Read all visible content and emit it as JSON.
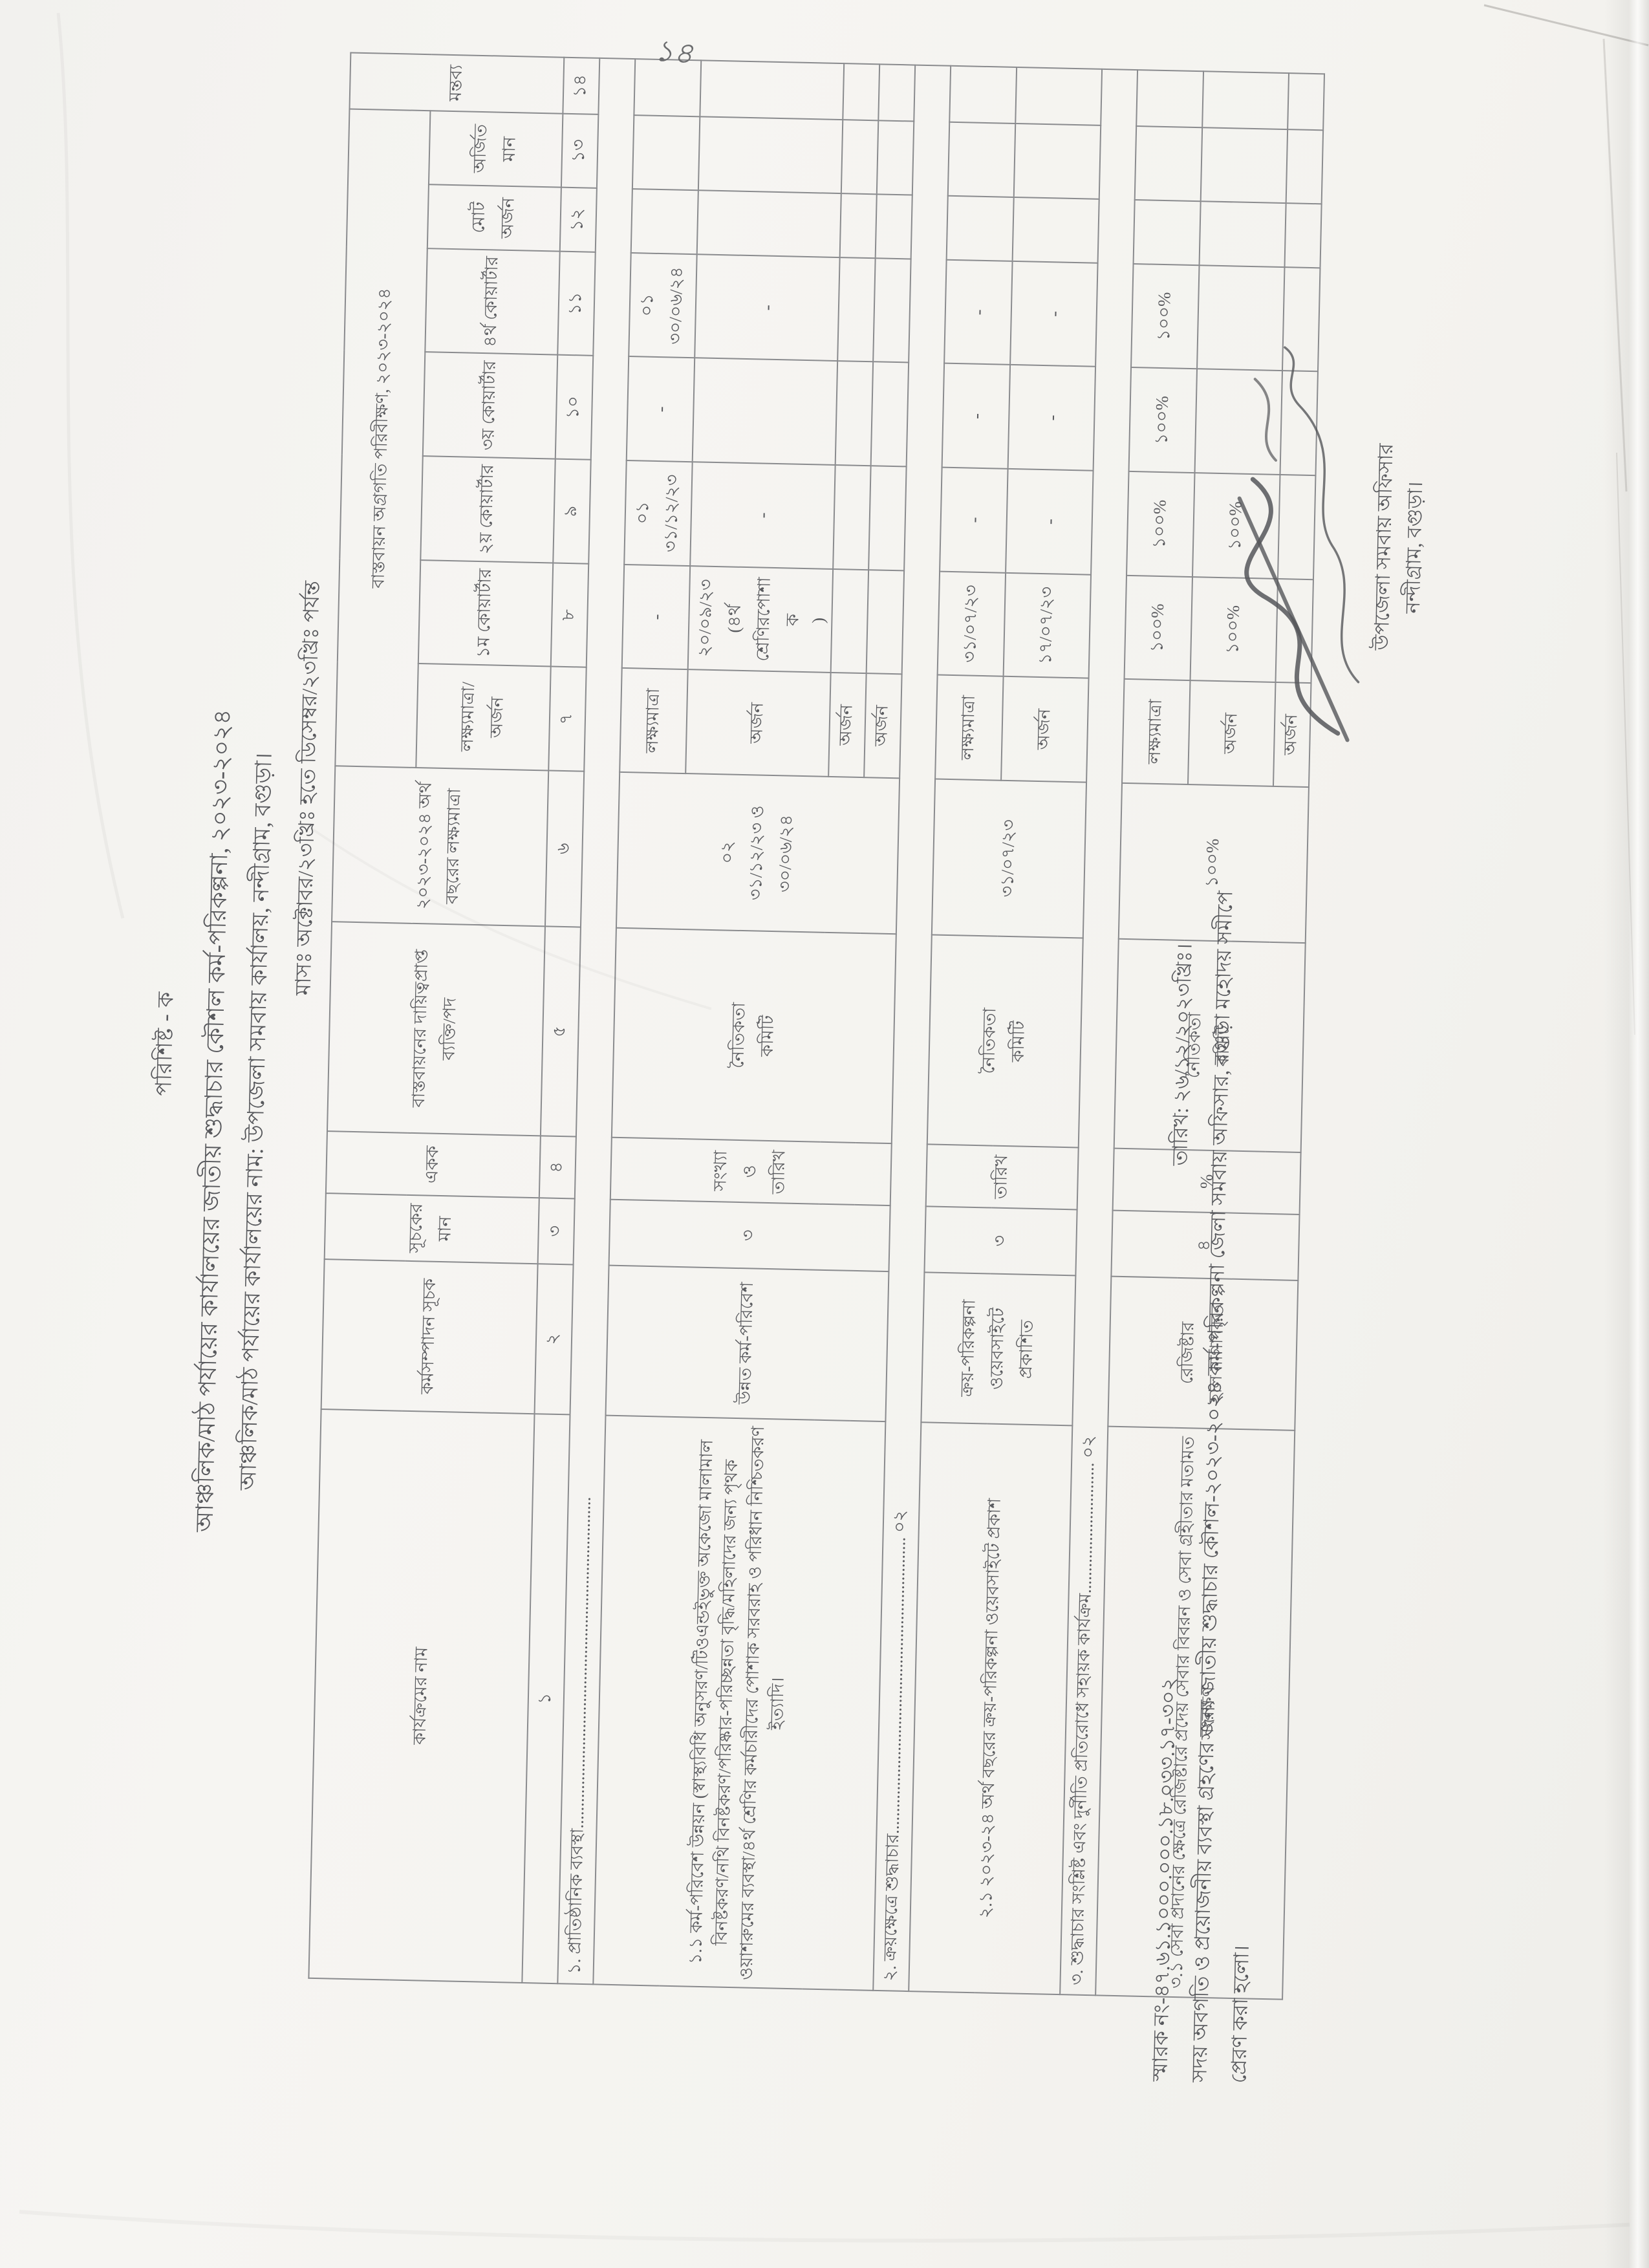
{
  "page": {
    "page_number_handwritten": "১৪",
    "appendix_label": "পরিশিষ্ট - ক",
    "title": "আঞ্চলিক/মাঠ পর্যায়ের কার্যালয়ের জাতীয় শুদ্ধাচার কৌশল কর্ম-পরিকল্পনা, ২০২৩-২০২৪",
    "office_line": "আঞ্চলিক/মাঠ পর্যায়ের কার্যালয়ের নাম: উপজেলা সমবায় কার্যালয়, নন্দীগ্রাম, বগুড়া।",
    "period_line": "মাসঃ অক্টোবর/২৩খ্রিঃ হতে ডিসেম্বর/২৩খ্রিঃ পর্যন্ত"
  },
  "table": {
    "headers": {
      "activity": "কার্যক্রমের নাম",
      "indicator": "কর্মসম্পাদন সূচক",
      "indicator_value": "সূচকের মান",
      "unit": "একক",
      "responsible": "বাস্তবায়নের দায়িত্বপ্রাপ্ত ব্যক্তি/পদ",
      "fy_target": "২০২৩-২০২৪ অর্থ বছরের লক্ষ্যমাত্রা",
      "monitoring": "বাস্তবায়ন অগ্রগতি পরিবীক্ষণ, ২০২৩-২০২৪",
      "target_achievement": "লক্ষ্যমাত্রা/অর্জন",
      "q1": "১ম কোয়ার্টার",
      "q2": "২য় কোয়ার্টার",
      "q3": "৩য় কোয়ার্টার",
      "q4": "৪র্থ কোয়ার্টার",
      "total_achievement": "মোট অর্জন",
      "earned_value": "অর্জিত মান",
      "remarks": "মন্তব্য"
    },
    "column_numbers": [
      "১",
      "২",
      "৩",
      "৪",
      "৫",
      "৬",
      "৭",
      "৮",
      "৯",
      "১০",
      "১১",
      "১২",
      "১৩",
      "১৪"
    ],
    "rows": [
      {
        "type": "section",
        "text": "১. প্রাতিষ্ঠানিক ব্যবস্থা............................................................................"
      },
      {
        "type": "activity",
        "activity": "১.১ কর্ম-পরিবেশ উন্নয়ন (স্বাস্থ্যবিধি অনুসরণ/টিওএন্ডইভুক্ত অকেজো মালামাল বিনষ্টকরণ/নথি বিনষ্টকরণ/পরিষ্কার-পরিচ্ছন্নতা বৃদ্ধি/মহিলাদের জন্য পৃথক ওয়াশরুমের ব্যবস্থা/৪র্থ শ্রেণির কর্মচারীদের পোশাক সরবরাহ ও পরিধান নিশ্চিতকরণ ইত্যাদি।",
        "indicator": "উন্নত কর্ম-পরিবেশ",
        "value": "৩",
        "unit": "সংখ্যা ও\nতারিখ",
        "responsible": "নৈতিকতা\nকমিটি",
        "fy_target": "০২\n৩১/১২/২৩ ও\n৩০/০৬/২৪",
        "subrows": [
          {
            "label": "লক্ষ্যমাত্রা",
            "q1": "-",
            "q2": "০১\n৩১/১২/২৩",
            "q3": "-",
            "q4": "০১\n৩০/০৬/২৪",
            "total": "",
            "earned": "",
            "remarks": ""
          },
          {
            "label": "অর্জন",
            "q1": "২০/০৯/২৩\n(৪র্থ\nশ্রেণিরপোশাক\n)",
            "q2": "-",
            "q3": "",
            "q4": "-",
            "total": "",
            "earned": "",
            "remarks": ""
          },
          {
            "label": "অর্জন",
            "q1": "",
            "q2": "",
            "q3": "",
            "q4": "",
            "total": "",
            "earned": "",
            "remarks": ""
          },
          {
            "label": "অর্জন",
            "q1": "",
            "q2": "",
            "q3": "",
            "q4": "",
            "total": "",
            "earned": "",
            "remarks": ""
          }
        ]
      },
      {
        "type": "section",
        "text": "২. ক্রয়ক্ষেত্রে শুদ্ধাচার.................................................................... ০২"
      },
      {
        "type": "activity",
        "activity": "২.১ ২০২৩-২৪ অর্থ বছরের ক্রয়-পরিকল্পনা ওয়েবসাইটে প্রকাশ",
        "indicator": "ক্রয়-পরিকল্পনা ওয়েবসাইটে প্রকাশিত",
        "value": "৩",
        "unit": "তারিখ",
        "responsible": "নৈতিকতা\nকমিটি",
        "fy_target": "৩১/০৭/২৩",
        "subrows": [
          {
            "label": "লক্ষ্যমাত্রা",
            "q1": "৩১/০৭/২৩",
            "q2": "-",
            "q3": "-",
            "q4": "-",
            "total": "",
            "earned": "",
            "remarks": ""
          },
          {
            "label": "অর্জন",
            "q1": "১৭/০৭/২৩",
            "q2": "-",
            "q3": "-",
            "q4": "-",
            "total": "",
            "earned": "",
            "remarks": ""
          }
        ]
      },
      {
        "type": "section",
        "text": "৩. শুদ্ধাচার সংশ্লিষ্ট এবং দুর্নীতি প্রতিরোধে সহায়ক কার্যক্রম.............................. ০২"
      },
      {
        "type": "activity",
        "activity": "৩.১ সেবা প্রদানের ক্ষেত্রে রেজিষ্টারে প্রদেয় সেবার বিবরন ও সেবা গ্রহীতার মতামত সংরক্ষণ",
        "indicator": "রেজিষ্টার\nহাল নাগাদকৃত",
        "value": "৪",
        "unit": "%",
        "responsible": "নৈতিকতা\nকমিটি",
        "fy_target": "১০০%",
        "subrows": [
          {
            "label": "লক্ষ্যমাত্রা",
            "q1": "১০০%",
            "q2": "১০০%",
            "q3": "১০০%",
            "q4": "১০০%",
            "total": "",
            "earned": "",
            "remarks": ""
          },
          {
            "label": "অর্জন",
            "q1": "১০০%",
            "q2": "১০০%",
            "q3": "",
            "q4": "",
            "total": "",
            "earned": "",
            "remarks": ""
          },
          {
            "label": "অর্জন",
            "q1": "",
            "q2": "",
            "q3": "",
            "q4": "",
            "total": "",
            "earned": "",
            "remarks": ""
          }
        ]
      }
    ]
  },
  "footer": {
    "memo_line": "স্মারক নং-৪৭.৬১.১০০০.০০০.১৮.০৩৩.১৭-৩০২",
    "date_line": "তারিখ: ২৬/১২/২০২৩খ্রিঃ।",
    "forward_line": "সদয় অবগতি ও প্রয়োজনীয় ব্যবস্থা গ্রহণের জন্য জাতীয় শুদ্ধাচার কৌশল-২০২৩-২০২৪ কর্ম-পরিকল্পনা  জেলা সমবায় অফিসার, বগুড়া মহোদয় সমীপে",
    "forward_line2": "প্রেরণ করা হলো।"
  },
  "signature": {
    "designation": "উপজেলা সমবায় অফিসার",
    "office": "নন্দীগ্রাম, বগুড়া।"
  },
  "colors": {
    "paper": "#f4f3f0",
    "ink": "#57585c",
    "border": "#8a8b8e"
  }
}
